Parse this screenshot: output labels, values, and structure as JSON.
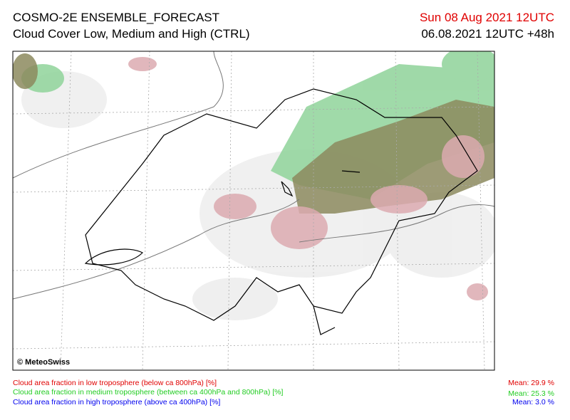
{
  "header": {
    "title": "COSMO-2E ENSEMBLE_FORECAST",
    "subtitle": "Cloud Cover Low, Medium and High (CTRL)",
    "valid_time": "Sun 08 Aug 2021 12UTC",
    "run": "06.08.2021 12UTC +48h"
  },
  "map": {
    "copyright": "© MeteoSwiss"
  },
  "legend": [
    {
      "label": "Cloud area fraction in low troposphere (below ca 800hPa) [%]",
      "mean": "Mean:  29.9 %"
    },
    {
      "label": "Cloud area fraction in medium troposphere (between ca 400hPa and 800hPa) [%]",
      "mean": "Mean:  25.3 %"
    },
    {
      "label": "Cloud area fraction in high troposphere (above ca 400hPa) [%]",
      "mean": "Mean:   3.0 %"
    }
  ]
}
